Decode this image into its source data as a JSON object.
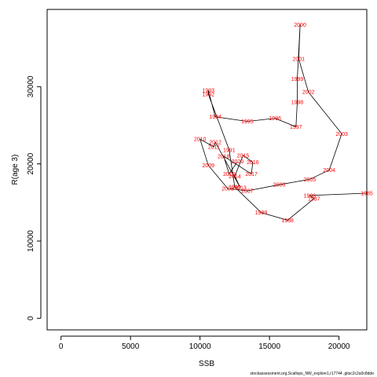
{
  "chart_data": {
    "type": "line",
    "xlabel": "SSB",
    "ylabel": "R(age 3)",
    "xlim": [
      -1000,
      22000
    ],
    "ylim": [
      -1500,
      40000
    ],
    "xticks": [
      0,
      5000,
      10000,
      15000,
      20000
    ],
    "yticks": [
      0,
      10000,
      20000,
      30000
    ],
    "grid": false,
    "line_color": "#000000",
    "label_color": "#ff0000",
    "points": [
      {
        "year": "1985",
        "x": 22000,
        "y": 16200
      },
      {
        "year": "1986",
        "x": 17900,
        "y": 15900
      },
      {
        "year": "1987",
        "x": 18200,
        "y": 15500
      },
      {
        "year": "1988",
        "x": 16300,
        "y": 12700
      },
      {
        "year": "1989",
        "x": 14400,
        "y": 13700
      },
      {
        "year": "1990",
        "x": 12500,
        "y": 17000
      },
      {
        "year": "1991",
        "x": 12100,
        "y": 21800
      },
      {
        "year": "1992",
        "x": 10600,
        "y": 29000
      },
      {
        "year": "1993",
        "x": 10600,
        "y": 29500
      },
      {
        "year": "1994",
        "x": 11100,
        "y": 26100
      },
      {
        "year": "1995",
        "x": 13400,
        "y": 25500
      },
      {
        "year": "1996",
        "x": 15400,
        "y": 25900
      },
      {
        "year": "1997",
        "x": 16900,
        "y": 24800
      },
      {
        "year": "1998",
        "x": 17000,
        "y": 28000
      },
      {
        "year": "1999",
        "x": 17000,
        "y": 31000
      },
      {
        "year": "2000",
        "x": 17200,
        "y": 38000
      },
      {
        "year": "2001",
        "x": 17100,
        "y": 33600
      },
      {
        "year": "2002",
        "x": 17800,
        "y": 29300
      },
      {
        "year": "2003",
        "x": 20200,
        "y": 23900
      },
      {
        "year": "2004",
        "x": 19300,
        "y": 19200
      },
      {
        "year": "2005",
        "x": 17900,
        "y": 18000
      },
      {
        "year": "2006",
        "x": 15700,
        "y": 17300
      },
      {
        "year": "2007",
        "x": 13400,
        "y": 16500
      },
      {
        "year": "2008",
        "x": 12000,
        "y": 16800
      },
      {
        "year": "2009",
        "x": 10600,
        "y": 19800
      },
      {
        "year": "2010",
        "x": 10000,
        "y": 23200
      },
      {
        "year": "2011",
        "x": 11000,
        "y": 22200
      },
      {
        "year": "2012",
        "x": 11100,
        "y": 22800
      },
      {
        "year": "2013",
        "x": 12900,
        "y": 16900
      },
      {
        "year": "2014",
        "x": 12500,
        "y": 18400
      },
      {
        "year": "2015",
        "x": 13100,
        "y": 21100
      },
      {
        "year": "2016",
        "x": 13800,
        "y": 20200
      },
      {
        "year": "2017",
        "x": 13700,
        "y": 18700
      },
      {
        "year": "2018",
        "x": 11700,
        "y": 21000
      },
      {
        "year": "2019",
        "x": 12100,
        "y": 18700
      },
      {
        "year": "2020",
        "x": 12700,
        "y": 20300
      }
    ]
  },
  "footer": "stockassessment.org,Scallops_NW_explore1,r17744 ,gitsc2c2a0c8dde"
}
